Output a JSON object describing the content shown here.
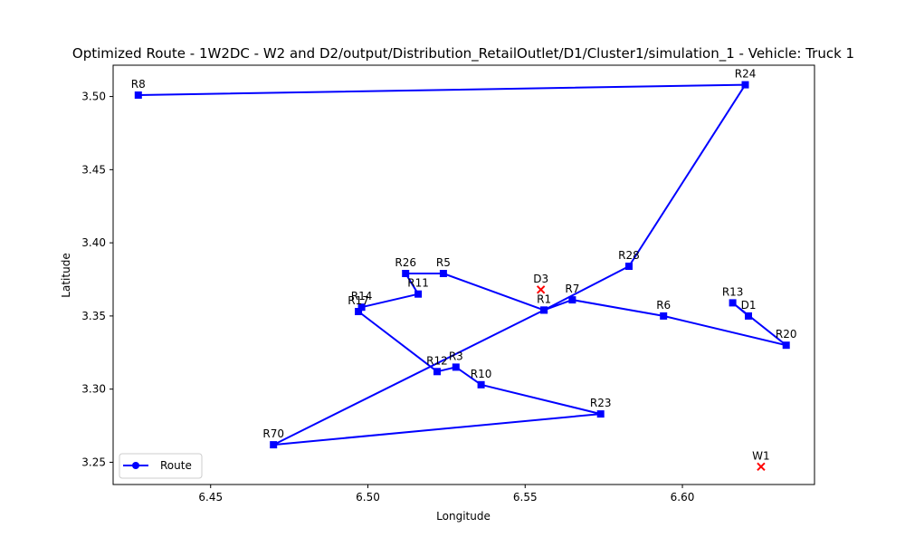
{
  "chart_data": {
    "type": "line",
    "title": "Optimized Route - 1W2DC - W2 and D2/output/Distribution_RetailOutlet/D1/Cluster1/simulation_1 - Vehicle: Truck 1",
    "xlabel": "Longitude",
    "ylabel": "Latitude",
    "xlim": [
      6.419,
      6.642
    ],
    "ylim": [
      3.2348,
      3.5214
    ],
    "xticks": [
      6.45,
      6.5,
      6.55,
      6.6
    ],
    "xtick_labels": [
      "6.45",
      "6.50",
      "6.55",
      "6.60"
    ],
    "yticks": [
      3.25,
      3.3,
      3.35,
      3.4,
      3.45,
      3.5
    ],
    "ytick_labels": [
      "3.25",
      "3.30",
      "3.35",
      "3.40",
      "3.45",
      "3.50"
    ],
    "grid": false,
    "legend_position": "lower-left",
    "series": [
      {
        "name": "Route",
        "color": "#0000ff",
        "marker": "circle",
        "points": [
          {
            "x": 6.621,
            "y": 3.35
          },
          {
            "x": 6.616,
            "y": 3.359
          },
          {
            "x": 6.633,
            "y": 3.33
          },
          {
            "x": 6.594,
            "y": 3.35
          },
          {
            "x": 6.565,
            "y": 3.361
          },
          {
            "x": 6.556,
            "y": 3.354
          },
          {
            "x": 6.524,
            "y": 3.379
          },
          {
            "x": 6.512,
            "y": 3.379
          },
          {
            "x": 6.516,
            "y": 3.365
          },
          {
            "x": 6.498,
            "y": 3.356
          },
          {
            "x": 6.497,
            "y": 3.353
          },
          {
            "x": 6.522,
            "y": 3.312
          },
          {
            "x": 6.528,
            "y": 3.315
          },
          {
            "x": 6.536,
            "y": 3.303
          },
          {
            "x": 6.574,
            "y": 3.283
          },
          {
            "x": 6.47,
            "y": 3.262
          },
          {
            "x": 6.556,
            "y": 3.354
          },
          {
            "x": 6.583,
            "y": 3.384
          },
          {
            "x": 6.62,
            "y": 3.508
          },
          {
            "x": 6.427,
            "y": 3.501
          }
        ]
      }
    ],
    "point_labels": [
      {
        "label": "R8",
        "x": 6.427,
        "y": 3.501
      },
      {
        "label": "R24",
        "x": 6.62,
        "y": 3.508
      },
      {
        "label": "R28",
        "x": 6.583,
        "y": 3.384
      },
      {
        "label": "R26",
        "x": 6.512,
        "y": 3.379
      },
      {
        "label": "R5",
        "x": 6.524,
        "y": 3.379
      },
      {
        "label": "R11",
        "x": 6.516,
        "y": 3.365
      },
      {
        "label": "R14",
        "x": 6.498,
        "y": 3.356
      },
      {
        "label": "R17",
        "x": 6.497,
        "y": 3.353
      },
      {
        "label": "R1",
        "x": 6.556,
        "y": 3.354
      },
      {
        "label": "R7",
        "x": 6.565,
        "y": 3.361
      },
      {
        "label": "R6",
        "x": 6.594,
        "y": 3.35
      },
      {
        "label": "R13",
        "x": 6.616,
        "y": 3.359
      },
      {
        "label": "D1",
        "x": 6.621,
        "y": 3.35
      },
      {
        "label": "R20",
        "x": 6.633,
        "y": 3.33
      },
      {
        "label": "R12",
        "x": 6.522,
        "y": 3.312
      },
      {
        "label": "R3",
        "x": 6.528,
        "y": 3.315
      },
      {
        "label": "R10",
        "x": 6.536,
        "y": 3.303
      },
      {
        "label": "R23",
        "x": 6.574,
        "y": 3.283
      },
      {
        "label": "R70",
        "x": 6.47,
        "y": 3.262
      }
    ],
    "markers_x": [
      {
        "label": "D3",
        "x": 6.555,
        "y": 3.368,
        "color": "#ff0000"
      },
      {
        "label": "W1",
        "x": 6.625,
        "y": 3.247,
        "color": "#ff0000"
      }
    ],
    "legend": [
      {
        "label": "Route",
        "color": "#0000ff"
      }
    ]
  }
}
